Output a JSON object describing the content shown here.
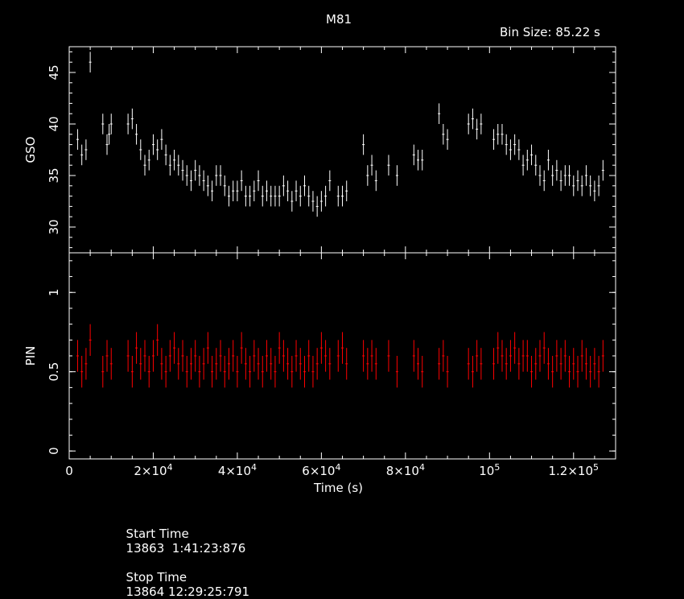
{
  "chart_data": [
    {
      "type": "scatter",
      "panel": "top",
      "title": "M81",
      "annotation": "Bin Size: 85.22 s",
      "ylabel": "GSO",
      "ylim": [
        27.5,
        47.5
      ],
      "yticks": [
        30,
        35,
        40,
        45
      ],
      "ytick_labels": [
        "30",
        "35",
        "40",
        "45"
      ],
      "xlim": [
        0,
        130000
      ],
      "grid": false,
      "color": "#ffffff",
      "series": [
        {
          "x": [
            2000,
            3000,
            4000,
            5000,
            8000,
            9000,
            9500,
            10000,
            14000,
            15000,
            16000,
            17000,
            18000,
            19000,
            20000,
            21000,
            22000,
            23000,
            24000,
            25000,
            26000,
            27000,
            28000,
            29000,
            30000,
            31000,
            32000,
            33000,
            34000,
            35000,
            36000,
            37000,
            38000,
            39000,
            40000,
            41000,
            42000,
            43000,
            44000,
            45000,
            46000,
            47000,
            48000,
            49000,
            50000,
            51000,
            52000,
            53000,
            54000,
            55000,
            56000,
            57000,
            58000,
            59000,
            60000,
            61000,
            62000,
            64000,
            65000,
            66000,
            70000,
            71000,
            72000,
            73000,
            76000,
            78000,
            82000,
            83000,
            84000,
            88000,
            89000,
            90000,
            95000,
            96000,
            97000,
            98000,
            101000,
            102000,
            103000,
            104000,
            105000,
            106000,
            107000,
            108000,
            109000,
            110000,
            111000,
            112000,
            113000,
            114000,
            115000,
            116000,
            117000,
            118000,
            119000,
            120000,
            121000,
            122000,
            123000,
            124000,
            125000,
            126000,
            127000
          ],
          "y": [
            38.5,
            37.0,
            37.5,
            46.0,
            40.0,
            38.0,
            39.0,
            40.0,
            40.0,
            40.5,
            39.0,
            37.5,
            36.0,
            36.5,
            38.0,
            37.5,
            38.5,
            37.0,
            36.0,
            36.5,
            36.0,
            35.5,
            35.0,
            34.5,
            35.5,
            35.0,
            34.5,
            34.0,
            33.5,
            35.0,
            35.0,
            34.0,
            33.0,
            33.5,
            33.5,
            34.5,
            33.0,
            33.0,
            33.5,
            34.5,
            33.0,
            33.5,
            33.0,
            33.0,
            33.0,
            34.0,
            33.5,
            32.5,
            33.5,
            33.0,
            34.0,
            33.0,
            32.5,
            32.0,
            32.5,
            33.0,
            34.5,
            33.0,
            33.0,
            33.5,
            38.0,
            35.0,
            36.0,
            34.5,
            36.0,
            35.0,
            37.0,
            36.5,
            36.5,
            41.0,
            39.0,
            38.5,
            40.0,
            40.5,
            39.5,
            40.0,
            38.5,
            39.0,
            39.0,
            38.0,
            37.5,
            38.0,
            37.5,
            36.0,
            36.5,
            37.0,
            36.0,
            35.0,
            34.5,
            36.5,
            35.0,
            35.5,
            34.5,
            35.0,
            35.0,
            34.0,
            34.5,
            34.0,
            35.0,
            34.0,
            33.5,
            34.0,
            35.5
          ]
        }
      ]
    },
    {
      "type": "scatter",
      "panel": "bottom",
      "ylabel": "PIN",
      "xlabel": "Time (s)",
      "ylim": [
        -0.05,
        1.25
      ],
      "yticks": [
        0,
        0.5,
        1
      ],
      "ytick_labels": [
        "0",
        "0.5",
        "1"
      ],
      "xlim": [
        0,
        130000
      ],
      "xticks": [
        0,
        20000,
        40000,
        60000,
        80000,
        100000,
        120000
      ],
      "xtick_labels": [
        {
          "base": "0",
          "exp": ""
        },
        {
          "base": "2×10",
          "exp": "4"
        },
        {
          "base": "4×10",
          "exp": "4"
        },
        {
          "base": "6×10",
          "exp": "4"
        },
        {
          "base": "8×10",
          "exp": "4"
        },
        {
          "base": "10",
          "exp": "5"
        },
        {
          "base": "1.2×10",
          "exp": "5"
        }
      ],
      "grid": false,
      "color": "#ff0000",
      "series": [
        {
          "x": [
            2000,
            3000,
            4000,
            5000,
            8000,
            9000,
            10000,
            14000,
            15000,
            16000,
            17000,
            18000,
            19000,
            20000,
            21000,
            22000,
            23000,
            24000,
            25000,
            26000,
            27000,
            28000,
            29000,
            30000,
            31000,
            32000,
            33000,
            34000,
            35000,
            36000,
            37000,
            38000,
            39000,
            40000,
            41000,
            42000,
            43000,
            44000,
            45000,
            46000,
            47000,
            48000,
            49000,
            50000,
            51000,
            52000,
            53000,
            54000,
            55000,
            56000,
            57000,
            58000,
            59000,
            60000,
            61000,
            62000,
            64000,
            65000,
            66000,
            70000,
            71000,
            72000,
            73000,
            76000,
            78000,
            82000,
            83000,
            84000,
            88000,
            89000,
            90000,
            95000,
            96000,
            97000,
            98000,
            101000,
            102000,
            103000,
            104000,
            105000,
            106000,
            107000,
            108000,
            109000,
            110000,
            111000,
            112000,
            113000,
            114000,
            115000,
            116000,
            117000,
            118000,
            119000,
            120000,
            121000,
            122000,
            123000,
            124000,
            125000,
            126000,
            127000
          ],
          "y": [
            0.6,
            0.5,
            0.55,
            0.7,
            0.5,
            0.6,
            0.55,
            0.6,
            0.5,
            0.65,
            0.55,
            0.6,
            0.5,
            0.6,
            0.7,
            0.55,
            0.5,
            0.6,
            0.65,
            0.55,
            0.6,
            0.5,
            0.55,
            0.6,
            0.5,
            0.55,
            0.65,
            0.5,
            0.55,
            0.6,
            0.5,
            0.55,
            0.6,
            0.5,
            0.65,
            0.55,
            0.5,
            0.6,
            0.55,
            0.5,
            0.6,
            0.55,
            0.5,
            0.65,
            0.6,
            0.55,
            0.5,
            0.6,
            0.55,
            0.5,
            0.6,
            0.5,
            0.55,
            0.65,
            0.6,
            0.55,
            0.6,
            0.65,
            0.55,
            0.6,
            0.55,
            0.6,
            0.55,
            0.6,
            0.5,
            0.6,
            0.55,
            0.5,
            0.55,
            0.6,
            0.5,
            0.55,
            0.5,
            0.6,
            0.55,
            0.55,
            0.65,
            0.6,
            0.55,
            0.6,
            0.65,
            0.55,
            0.6,
            0.6,
            0.5,
            0.55,
            0.6,
            0.65,
            0.55,
            0.5,
            0.6,
            0.55,
            0.6,
            0.5,
            0.55,
            0.5,
            0.6,
            0.55,
            0.5,
            0.55,
            0.5,
            0.6
          ]
        }
      ]
    }
  ],
  "footer": {
    "start_label": "Start Time",
    "start_value": "13863  1:41:23:876",
    "stop_label": "Stop Time",
    "stop_value": "13864 12:29:25:791"
  }
}
